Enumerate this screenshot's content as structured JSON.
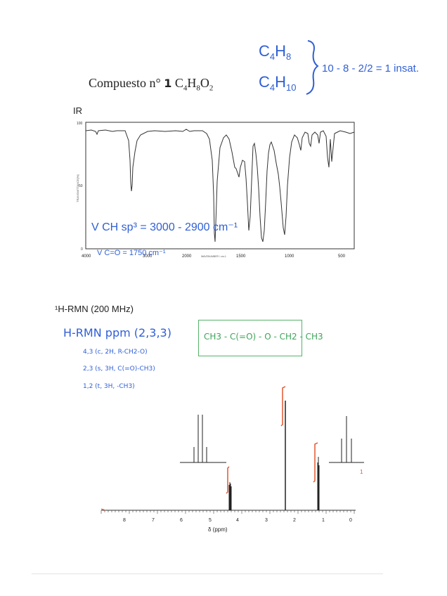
{
  "title": {
    "prefix": "Compuesto n°",
    "number": "1",
    "formula": "C4H8O2"
  },
  "handwriting": {
    "top_formula_1": "C4H8",
    "top_formula_2": "C4H10",
    "unsaturation": "10 - 8 - 2/2 = 1 insat."
  },
  "ir": {
    "label": "IR",
    "x_ticks": [
      "4000",
      "3000",
      "2000",
      "1500",
      "1000",
      "500"
    ],
    "y_ticks": [
      "100",
      "50",
      "0"
    ],
    "annotation_ch": "V CH sp³ = 3000 - 2900 cm⁻¹",
    "annotation_co": "V C=O = 1750 cm⁻¹"
  },
  "nmr": {
    "label": "¹H-RMN (200 MHz)",
    "notes": [
      "H-RMN ppm (2,3,3)",
      "4,3 (c, 2H, R-CH2-O)",
      "2,3 (s, 3H, C(=O)-CH3)",
      "1,2 (t, 3H, -CH3)"
    ],
    "structure": "CH3 - C(=O) - O - CH2 - CH3",
    "x_ticks": [
      "8",
      "7",
      "6",
      "5",
      "4",
      "3",
      "2",
      "1",
      "0"
    ],
    "xlabel": "δ (ppm)"
  },
  "colors": {
    "ink": "#2f5fd6",
    "green": "#55b36a",
    "orange": "#e2562f"
  }
}
